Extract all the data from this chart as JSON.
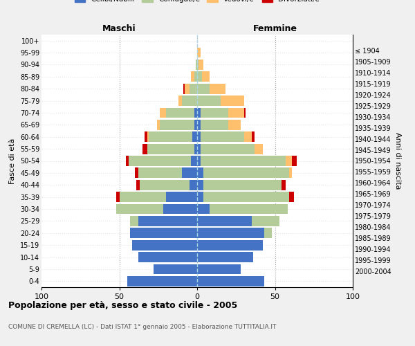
{
  "age_groups": [
    "0-4",
    "5-9",
    "10-14",
    "15-19",
    "20-24",
    "25-29",
    "30-34",
    "35-39",
    "40-44",
    "45-49",
    "50-54",
    "55-59",
    "60-64",
    "65-69",
    "70-74",
    "75-79",
    "80-84",
    "85-89",
    "90-94",
    "95-99",
    "100+"
  ],
  "birth_years": [
    "2000-2004",
    "1995-1999",
    "1990-1994",
    "1985-1989",
    "1980-1984",
    "1975-1979",
    "1970-1974",
    "1965-1969",
    "1960-1964",
    "1955-1959",
    "1950-1954",
    "1945-1949",
    "1940-1944",
    "1935-1939",
    "1930-1934",
    "1925-1929",
    "1920-1924",
    "1915-1919",
    "1910-1914",
    "1905-1909",
    "≤ 1904"
  ],
  "colors": {
    "celibi": "#4472c4",
    "coniugati": "#b3cc99",
    "vedovi": "#ffc06e",
    "divorziati": "#cc0000"
  },
  "males": {
    "celibi": [
      45,
      28,
      38,
      42,
      43,
      38,
      22,
      20,
      5,
      10,
      4,
      2,
      3,
      2,
      2,
      0,
      0,
      0,
      0,
      0,
      0
    ],
    "coniugati": [
      0,
      0,
      0,
      0,
      0,
      5,
      30,
      30,
      32,
      28,
      40,
      30,
      28,
      22,
      18,
      10,
      5,
      2,
      1,
      0,
      0
    ],
    "vedovi": [
      0,
      0,
      0,
      0,
      0,
      0,
      0,
      0,
      0,
      0,
      0,
      0,
      1,
      2,
      4,
      2,
      3,
      2,
      0,
      0,
      0
    ],
    "divorziati": [
      0,
      0,
      0,
      0,
      0,
      0,
      0,
      2,
      2,
      2,
      2,
      3,
      2,
      0,
      0,
      0,
      1,
      0,
      0,
      0,
      0
    ]
  },
  "females": {
    "nubili": [
      43,
      28,
      36,
      42,
      43,
      35,
      8,
      4,
      4,
      4,
      2,
      2,
      2,
      2,
      2,
      0,
      0,
      0,
      0,
      0,
      0
    ],
    "coniugate": [
      0,
      0,
      0,
      0,
      5,
      18,
      50,
      55,
      50,
      55,
      55,
      35,
      28,
      18,
      18,
      15,
      8,
      3,
      1,
      0,
      0
    ],
    "vedove": [
      0,
      0,
      0,
      0,
      0,
      0,
      0,
      0,
      0,
      2,
      4,
      5,
      5,
      8,
      10,
      15,
      10,
      5,
      3,
      2,
      0
    ],
    "divorziate": [
      0,
      0,
      0,
      0,
      0,
      0,
      0,
      3,
      3,
      0,
      3,
      0,
      2,
      0,
      1,
      0,
      0,
      0,
      0,
      0,
      0
    ]
  },
  "xlim": 100,
  "title": "Popolazione per età, sesso e stato civile - 2005",
  "subtitle": "COMUNE DI CREMELLA (LC) - Dati ISTAT 1° gennaio 2005 - Elaborazione TUTTITALIA.IT",
  "ylabel_left": "Fasce di età",
  "ylabel_right": "Anni di nascita",
  "xlabel_left": "Maschi",
  "xlabel_right": "Femmine",
  "background_color": "#f0f0f0",
  "plot_bg": "#ffffff"
}
